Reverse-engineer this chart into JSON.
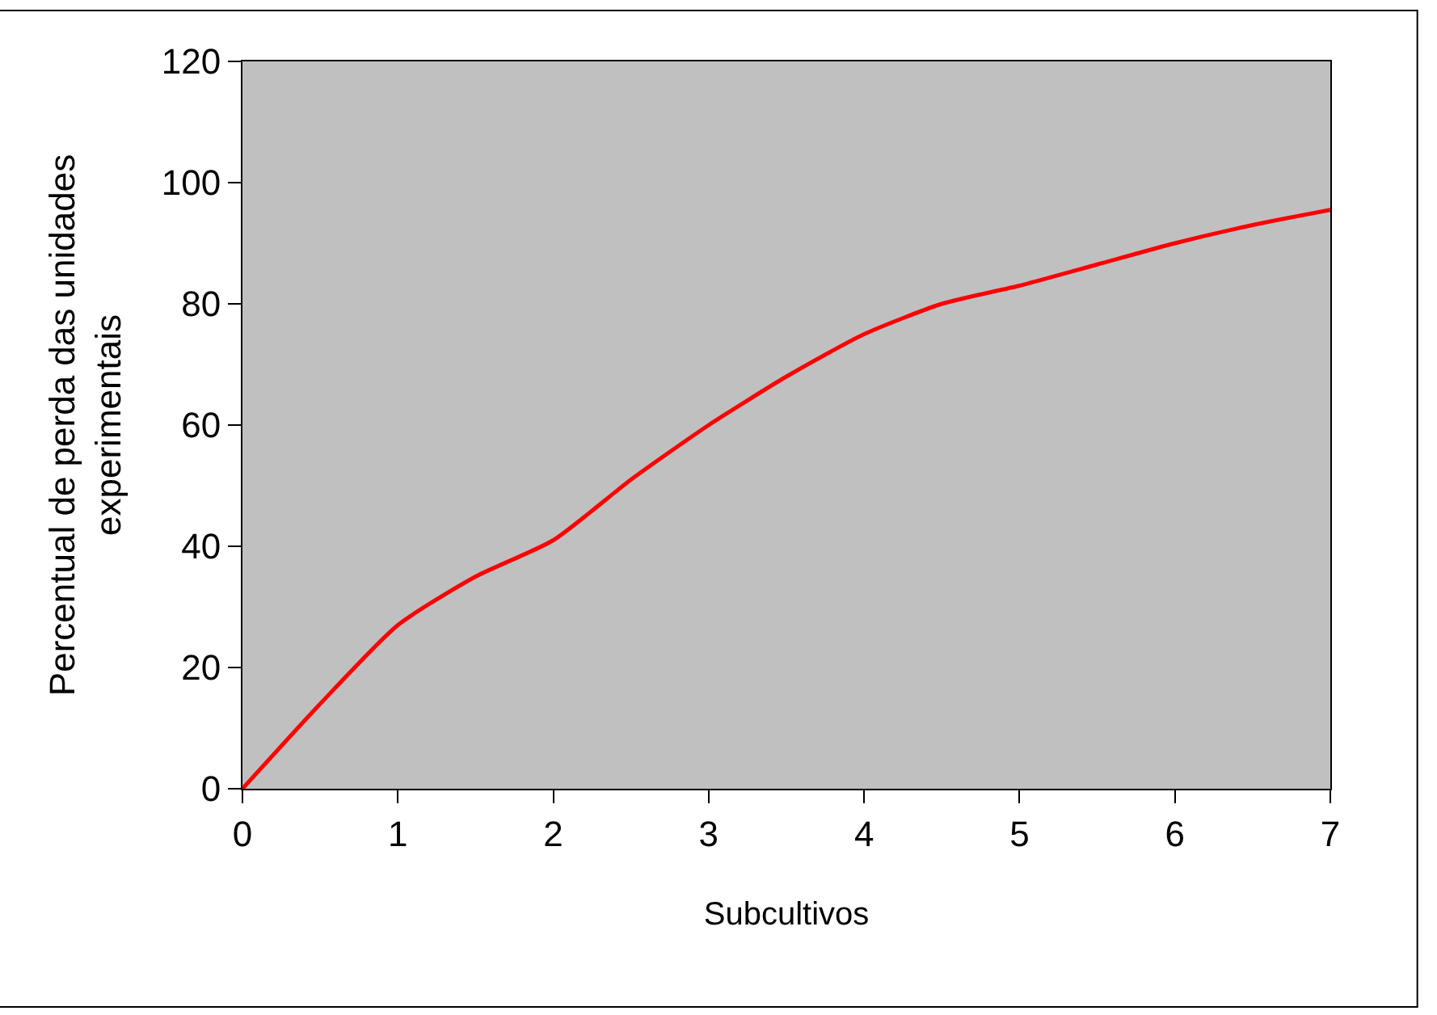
{
  "chart_data": {
    "type": "line",
    "xlabel": "Subcultivos",
    "ylabel": "Percentual de perda das unidades experimentais",
    "x": [
      0,
      0.5,
      1,
      1.5,
      2,
      2.5,
      3,
      3.5,
      4,
      4.5,
      5,
      5.5,
      6,
      6.5,
      7
    ],
    "series": [
      {
        "color": "#ff0000",
        "values": [
          0,
          14,
          27,
          35,
          41,
          51,
          60,
          68,
          75,
          80,
          83,
          86.5,
          90,
          93,
          95.5
        ]
      }
    ],
    "xlim": [
      0,
      7
    ],
    "xticks": [
      0,
      1,
      2,
      3,
      4,
      5,
      6,
      7
    ],
    "ylim": [
      0,
      120
    ],
    "yticks": [
      0,
      20,
      40,
      60,
      80,
      100,
      120
    ],
    "grid": false,
    "marker": "none",
    "line_style": "solid"
  }
}
